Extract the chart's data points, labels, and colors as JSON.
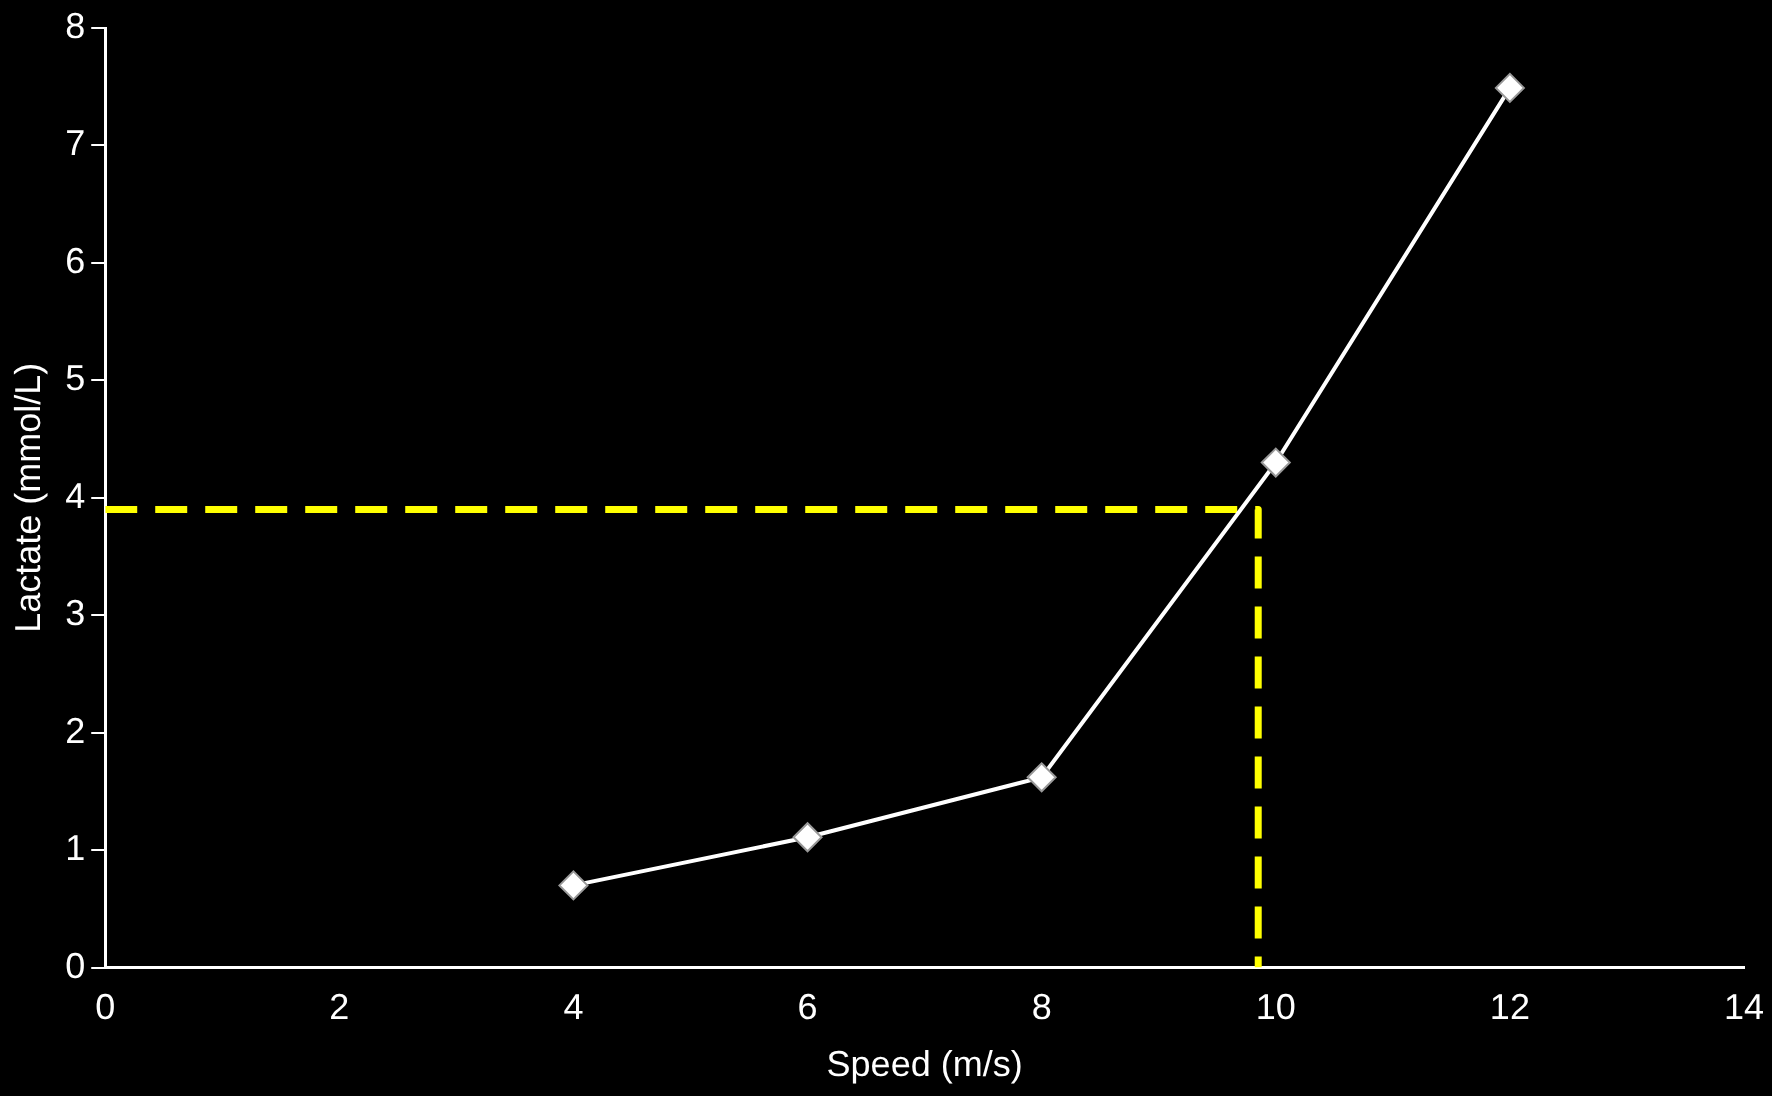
{
  "chart_data": {
    "type": "line",
    "xlabel": "Speed (m/s)",
    "ylabel": "Lactate (mmol/L)",
    "xlim": [
      0,
      14
    ],
    "xticks": [
      0,
      2,
      4,
      6,
      8,
      10,
      12,
      14
    ],
    "ylim": [
      0,
      8
    ],
    "yticks": [
      0,
      1,
      2,
      3,
      4,
      5,
      6,
      7,
      8
    ],
    "grid": false,
    "legend": false,
    "marker": "diamond",
    "line_style": "solid",
    "series": [
      {
        "color": "#ffffff",
        "x": [
          4,
          6,
          8,
          10,
          12
        ],
        "values": [
          0.7,
          1.11,
          1.62,
          4.3,
          7.49
        ]
      },
      {
        "color": "#ffff00",
        "x": [
          0,
          9.85,
          9.85
        ],
        "values": [
          3.9,
          3.9,
          0
        ],
        "marker": "none",
        "line_style": "dashed"
      }
    ]
  }
}
